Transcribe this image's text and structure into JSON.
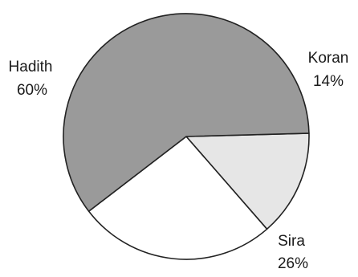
{
  "chart_data": {
    "type": "pie",
    "slices": [
      {
        "label": "Koran",
        "value": 14,
        "display": "14%",
        "color": "#e6e6e6"
      },
      {
        "label": "Sira",
        "value": 26,
        "display": "26%",
        "color": "#ffffff"
      },
      {
        "label": "Hadith",
        "value": 60,
        "display": "60%",
        "color": "#9a9a9a"
      }
    ]
  }
}
